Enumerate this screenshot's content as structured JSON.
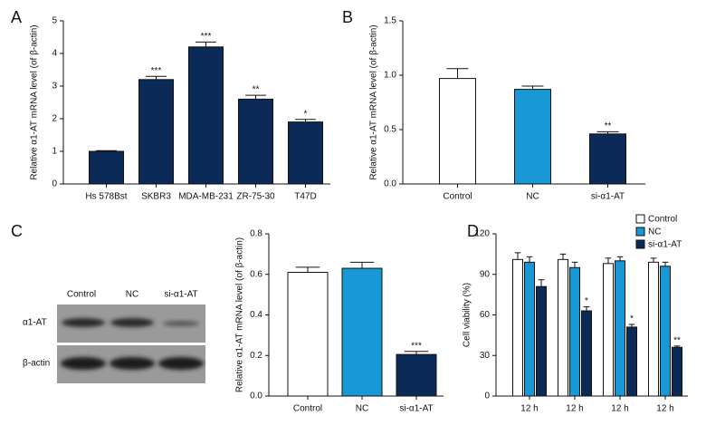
{
  "chart_data": [
    {
      "type": "bar",
      "label": "A",
      "y_label": "Relative α1-AT mRNA level (of β-actin)",
      "categories": [
        "Hs 578Bst",
        "SKBR3",
        "MDA-MB-231",
        "ZR-75-30",
        "T47D"
      ],
      "series": [
        {
          "color": "#0c2a57",
          "values": [
            1.0,
            3.2,
            4.2,
            2.6,
            1.9
          ],
          "errors": [
            0.02,
            0.1,
            0.15,
            0.12,
            0.08
          ],
          "annotations": [
            null,
            "***",
            "***",
            "**",
            "*"
          ]
        }
      ],
      "ylim": [
        0,
        5
      ],
      "yticks": [
        0,
        1,
        2,
        3,
        4,
        5
      ]
    },
    {
      "type": "bar",
      "label": "B",
      "y_label": "Relative α1-AT mRNA level (of β-actin)",
      "categories": [
        "Control",
        "NC",
        "si-α1-AT"
      ],
      "series": [
        {
          "colors": [
            "#ffffff",
            "#1898d5",
            "#0c2a57"
          ],
          "values": [
            0.97,
            0.87,
            0.46
          ],
          "errors": [
            0.09,
            0.03,
            0.02
          ],
          "annotations": [
            null,
            null,
            "**"
          ]
        }
      ],
      "ylim": [
        0,
        1.5
      ],
      "yticks": [
        {
          "value": 0,
          "label": "0.0"
        },
        0.5,
        {
          "value": 1,
          "label": "1.0"
        },
        1.5
      ]
    },
    {
      "type": "bar",
      "label": "C",
      "y_label": "Relative α1-AT mRNA level (of β-actin)",
      "categories": [
        "Control",
        "NC",
        "si-α1-AT"
      ],
      "series": [
        {
          "colors": [
            "#ffffff",
            "#1898d5",
            "#0c2a57"
          ],
          "values": [
            0.61,
            0.63,
            0.205
          ],
          "errors": [
            0.025,
            0.03,
            0.015
          ],
          "annotations": [
            null,
            null,
            "***"
          ]
        }
      ],
      "ylim": [
        0,
        0.8
      ],
      "yticks": [
        {
          "value": 0,
          "label": "0.0"
        },
        0.2,
        0.4,
        0.6,
        0.8
      ]
    },
    {
      "type": "grouped_bar",
      "label": "D",
      "y_label": "Cell viability (%)",
      "categories": [
        "12 h",
        "12 h",
        "12 h",
        "12 h"
      ],
      "series": [
        {
          "name": "Control",
          "color": "#ffffff",
          "values": [
            101,
            101,
            98,
            99
          ],
          "errors": [
            5,
            4,
            4,
            3
          ],
          "annotations": [
            null,
            null,
            null,
            null
          ]
        },
        {
          "name": "NC",
          "color": "#1898d5",
          "values": [
            99,
            95,
            100,
            96
          ],
          "errors": [
            4,
            4,
            3,
            3
          ],
          "annotations": [
            null,
            null,
            null,
            null
          ]
        },
        {
          "name": "si-α1-AT",
          "color": "#0c2a57",
          "values": [
            81,
            63,
            51,
            36
          ],
          "errors": [
            5,
            3,
            2,
            1
          ],
          "annotations": [
            null,
            "*",
            "*",
            "**"
          ]
        }
      ],
      "ylim": [
        0,
        120
      ],
      "yticks": [
        0,
        30,
        60,
        90,
        120
      ],
      "legend": "upper right"
    }
  ],
  "blot": {
    "lanes": [
      "Control",
      "NC",
      "si-α1-AT"
    ],
    "rows": [
      "α1-AT",
      "β-actin"
    ]
  }
}
